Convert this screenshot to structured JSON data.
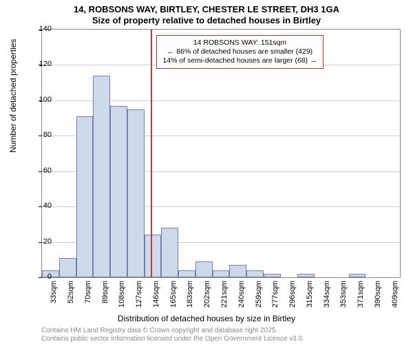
{
  "chart": {
    "type": "histogram",
    "title_line1": "14, ROBSONS WAY, BIRTLEY, CHESTER LE STREET, DH3 1GA",
    "title_line2": "Size of property relative to detached houses in Birtley",
    "y_axis_title": "Number of detached properties",
    "x_axis_title": "Distribution of detached houses by size in Birtley",
    "ylim": [
      0,
      140
    ],
    "ytick_step": 20,
    "yticks": [
      0,
      20,
      40,
      60,
      80,
      100,
      120,
      140
    ],
    "x_labels": [
      "33sqm",
      "52sqm",
      "70sqm",
      "89sqm",
      "108sqm",
      "127sqm",
      "146sqm",
      "165sqm",
      "183sqm",
      "202sqm",
      "221sqm",
      "240sqm",
      "259sqm",
      "277sqm",
      "296sqm",
      "315sqm",
      "334sqm",
      "353sqm",
      "371sqm",
      "390sqm",
      "409sqm"
    ],
    "values": [
      4,
      11,
      91,
      114,
      97,
      95,
      24,
      28,
      4,
      9,
      4,
      7,
      4,
      2,
      0,
      2,
      0,
      0,
      2,
      0,
      0
    ],
    "bar_fill": "#cfd9ec",
    "bar_border": "#7080a8",
    "grid_color": "#cccccc",
    "axis_color": "#888888",
    "marker": {
      "x_index_after": 6,
      "color": "#cc3333",
      "box": {
        "line1": "14 ROBSONS WAY: 151sqm",
        "line2": "← 86% of detached houses are smaller (429)",
        "line3": "14% of semi-detached houses are larger (68) →"
      }
    },
    "footer1": "Contains HM Land Registry data © Crown copyright and database right 2025.",
    "footer2": "Contains public sector information licensed under the Open Government Licence v3.0."
  }
}
